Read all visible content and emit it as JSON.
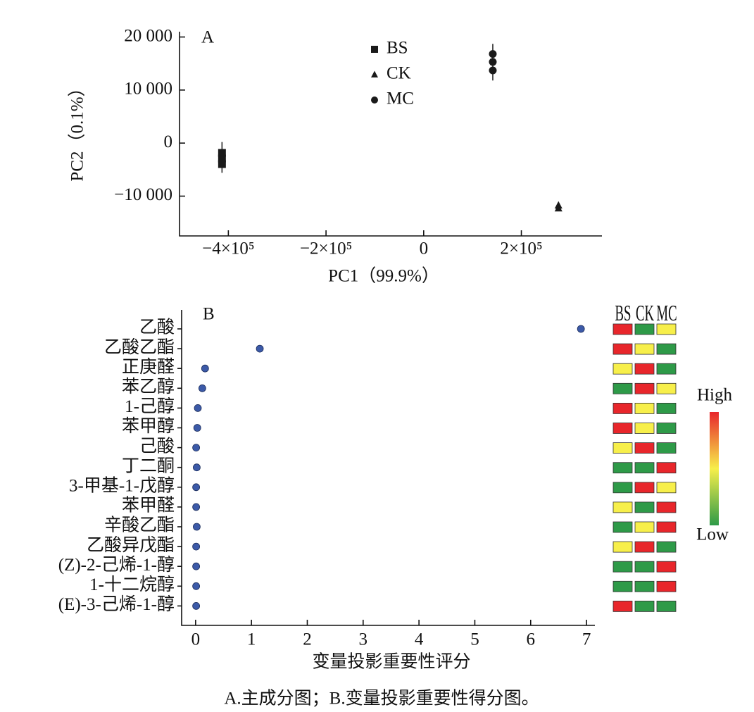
{
  "chart_data": [
    {
      "type": "scatter",
      "label": "A",
      "xlabel": "PC1（99.9%）",
      "ylabel": "PC2（0.1%）",
      "xlim": [
        -500000,
        365000
      ],
      "ylim": [
        -17500,
        21000
      ],
      "xticks": [
        {
          "value": -400000,
          "label": "−4×10⁵"
        },
        {
          "value": -200000,
          "label": "−2×10⁵"
        },
        0,
        {
          "value": 200000,
          "label": "2×10⁵"
        }
      ],
      "yticks": [
        {
          "value": 20000,
          "label": "20 000"
        },
        {
          "value": 10000,
          "label": "10 000"
        },
        0,
        {
          "value": -10000,
          "label": "−10 000"
        }
      ],
      "legend": "top",
      "series": [
        {
          "name": "BS",
          "marker": "square",
          "color": "#1a1a1a",
          "x": [
            -413000,
            -413000,
            -413000
          ],
          "y": [
            -1850,
            -2900,
            -3960
          ],
          "error_bar": [
            -5600,
            200
          ]
        },
        {
          "name": "CK",
          "marker": "triangle",
          "color": "#1a1a1a",
          "x": [
            276000,
            276000
          ],
          "y": [
            -11750,
            -12300
          ],
          "error_bar": [
            -12800,
            -11300
          ]
        },
        {
          "name": "MC",
          "marker": "circle",
          "color": "#1a1a1a",
          "x": [
            141500,
            141500,
            141500
          ],
          "y": [
            16800,
            15300,
            13700
          ],
          "error_bar": [
            11800,
            18700
          ]
        }
      ]
    },
    {
      "type": "dot",
      "label": "B",
      "xlabel": "变量投影重要性评分",
      "color": "#3c5aa8",
      "categories": [
        "乙酸",
        "乙酸乙酯",
        "正庚醛",
        "苯乙醇",
        "1-己醇",
        "苯甲醇",
        "己酸",
        "丁二酮",
        "3-甲基-1-戊醇",
        "苯甲醛",
        "辛酸乙酯",
        "乙酸异戊酯",
        "(Z)-2-己烯-1-醇",
        "1-十二烷醇",
        "(E)-3-己烯-1-醇"
      ],
      "values": [
        6.9,
        1.15,
        0.17,
        0.12,
        0.04,
        0.03,
        0.01,
        0.02,
        0.01,
        0.01,
        0.02,
        0.01,
        0.01,
        0.01,
        0.01
      ],
      "xlim": [
        -0.25,
        7.15
      ],
      "xticks": [
        0,
        1,
        2,
        3,
        4,
        5,
        6,
        7
      ],
      "heatmap": {
        "columns": [
          "BS",
          "CK",
          "MC"
        ],
        "colors": [
          [
            "#e8262b",
            "#2e9a48",
            "#f7ef4a"
          ],
          [
            "#e8262b",
            "#f7ef4a",
            "#2e9a48"
          ],
          [
            "#f7ef4a",
            "#e8262b",
            "#2e9a48"
          ],
          [
            "#2e9a48",
            "#e8262b",
            "#f7ef4a"
          ],
          [
            "#e8262b",
            "#f7ef4a",
            "#2e9a48"
          ],
          [
            "#e8262b",
            "#f7ef4a",
            "#2e9a48"
          ],
          [
            "#f7ef4a",
            "#e8262b",
            "#2e9a48"
          ],
          [
            "#2e9a48",
            "#2e9a48",
            "#e8262b"
          ],
          [
            "#2e9a48",
            "#e8262b",
            "#f7ef4a"
          ],
          [
            "#f7ef4a",
            "#2e9a48",
            "#e8262b"
          ],
          [
            "#2e9a48",
            "#f7ef4a",
            "#e8262b"
          ],
          [
            "#f7ef4a",
            "#e8262b",
            "#2e9a48"
          ],
          [
            "#2e9a48",
            "#2e9a48",
            "#e8262b"
          ],
          [
            "#2e9a48",
            "#2e9a48",
            "#e8262b"
          ],
          [
            "#e8262b",
            "#2e9a48",
            "#2e9a48"
          ]
        ]
      },
      "colorbar": {
        "high": "High",
        "low": "Low",
        "colors": [
          "#e8262b",
          "#f7ef4a",
          "#2e9a48"
        ]
      }
    }
  ],
  "caption": "A.主成分图；B.变量投影重要性得分图。"
}
